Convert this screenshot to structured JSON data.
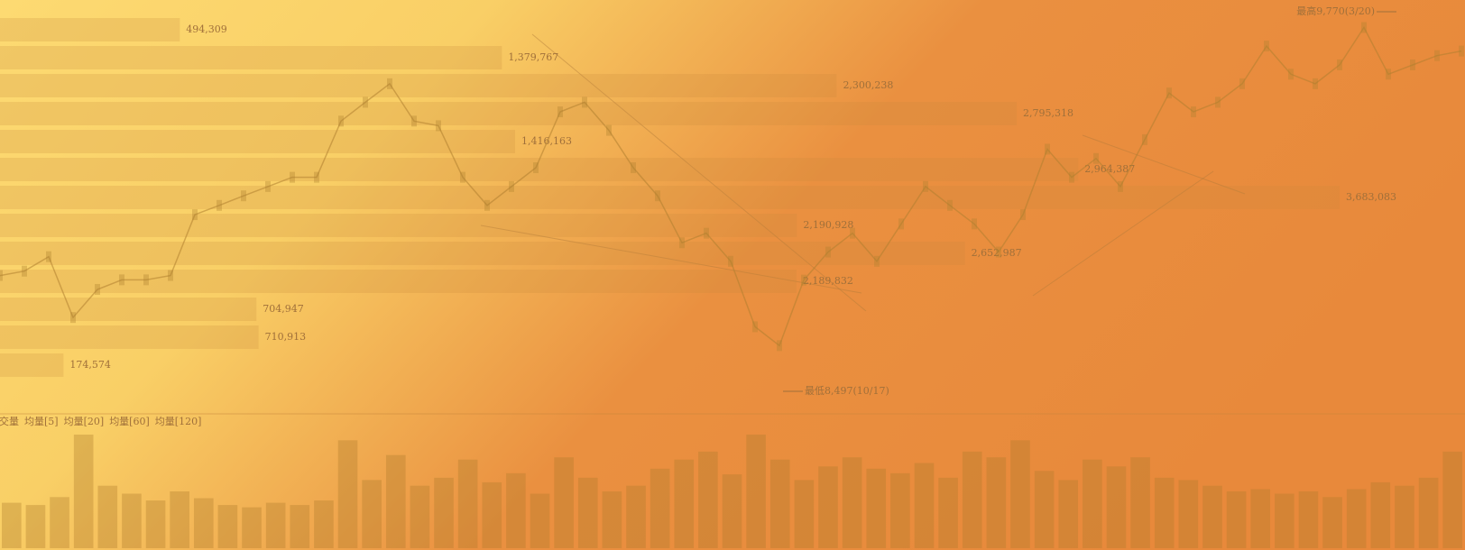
{
  "chart_data": {
    "type": "line",
    "series": [
      {
        "name": "price",
        "color": "#b0802f",
        "values": [
          8875,
          8890,
          8940,
          8730,
          8827,
          8860,
          8860,
          8875,
          9085,
          9117,
          9150,
          9182,
          9214,
          9214,
          9408,
          9473,
          9537,
          9408,
          9392,
          9214,
          9117,
          9182,
          9247,
          9440,
          9473,
          9376,
          9247,
          9150,
          8988,
          9021,
          8924,
          8698,
          8633,
          8859,
          8956,
          9021,
          8924,
          9053,
          9182,
          9117,
          9053,
          8956,
          9085,
          9311,
          9214,
          9279,
          9182,
          9344,
          9505,
          9440,
          9473,
          9537,
          9667,
          9570,
          9537,
          9602,
          9731,
          9570,
          9602,
          9634,
          9650
        ]
      }
    ],
    "high": {
      "value": 9770,
      "label": "最高9,770(3/20)"
    },
    "low": {
      "value": 8497,
      "label": "最低8,497(10/17)"
    },
    "volume_profile": {
      "values": [
        494309,
        1379767,
        2300238,
        2795318,
        1416163,
        2964387,
        3683083,
        2190928,
        2652987,
        2189832,
        704947,
        710913,
        174574
      ],
      "value_labels": [
        "494,309",
        "1,379,767",
        "2,300,238",
        "2,795,318",
        "1,416,163",
        "2,964,387",
        "3,683,083",
        "2,190,928",
        "2,652,987",
        "2,189,832",
        "704,947",
        "710,913",
        "174,574"
      ],
      "color": "#c98a3a"
    },
    "volume_legend": [
      "成交量",
      "均量[5]",
      "均量[20]",
      "均量[60]",
      "均量[120]"
    ],
    "volume": {
      "color": "#b07a2a",
      "values": [
        40,
        38,
        45,
        100,
        55,
        48,
        42,
        50,
        44,
        38,
        36,
        40,
        38,
        42,
        95,
        60,
        82,
        55,
        62,
        78,
        58,
        66,
        48,
        80,
        62,
        50,
        55,
        70,
        78,
        85,
        65,
        100,
        78,
        60,
        72,
        80,
        70,
        66,
        75,
        62,
        85,
        80,
        95,
        68,
        60,
        78,
        72,
        80,
        62,
        60,
        55,
        50,
        52,
        48,
        50,
        45,
        52,
        58,
        55,
        62,
        85
      ]
    }
  }
}
